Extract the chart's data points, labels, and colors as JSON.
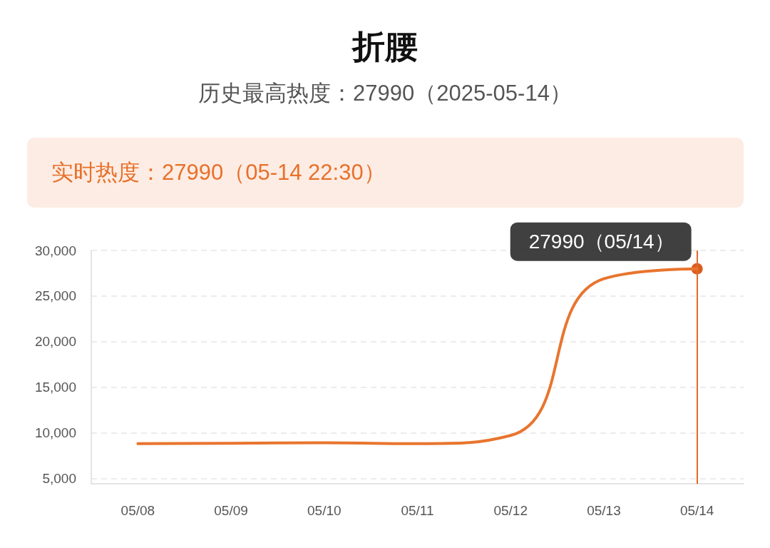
{
  "chart_data": {
    "type": "line",
    "title": "折腰",
    "subtitle": "历史最高热度：27990（2025-05-14）",
    "annotations": [
      "实时热度：27990（05-14 22:30）",
      {
        "text": "27990（05/14）",
        "x": "05/14",
        "y": 27990
      }
    ],
    "categories": [
      "05/08",
      "05/09",
      "05/10",
      "05/11",
      "05/12",
      "05/13",
      "05/14"
    ],
    "series": [
      {
        "color": "#e8752e",
        "values": [
          8800,
          8850,
          8900,
          8800,
          9700,
          26900,
          27990
        ]
      }
    ],
    "ylim": [
      4400,
      30000
    ],
    "yticks": [
      {
        "value": 5000,
        "label": "5,000"
      },
      {
        "value": 10000,
        "label": "10,000"
      },
      {
        "value": 15000,
        "label": "15,000"
      },
      {
        "value": 20000,
        "label": "20,000"
      },
      {
        "value": 25000,
        "label": "25,000"
      },
      {
        "value": 30000,
        "label": "30,000"
      }
    ],
    "ref_lines": [
      {
        "axis": "x",
        "value": "05/14",
        "color": "#e06a2a"
      }
    ],
    "grid": "y",
    "marker": "none",
    "line_style": "solid"
  }
}
